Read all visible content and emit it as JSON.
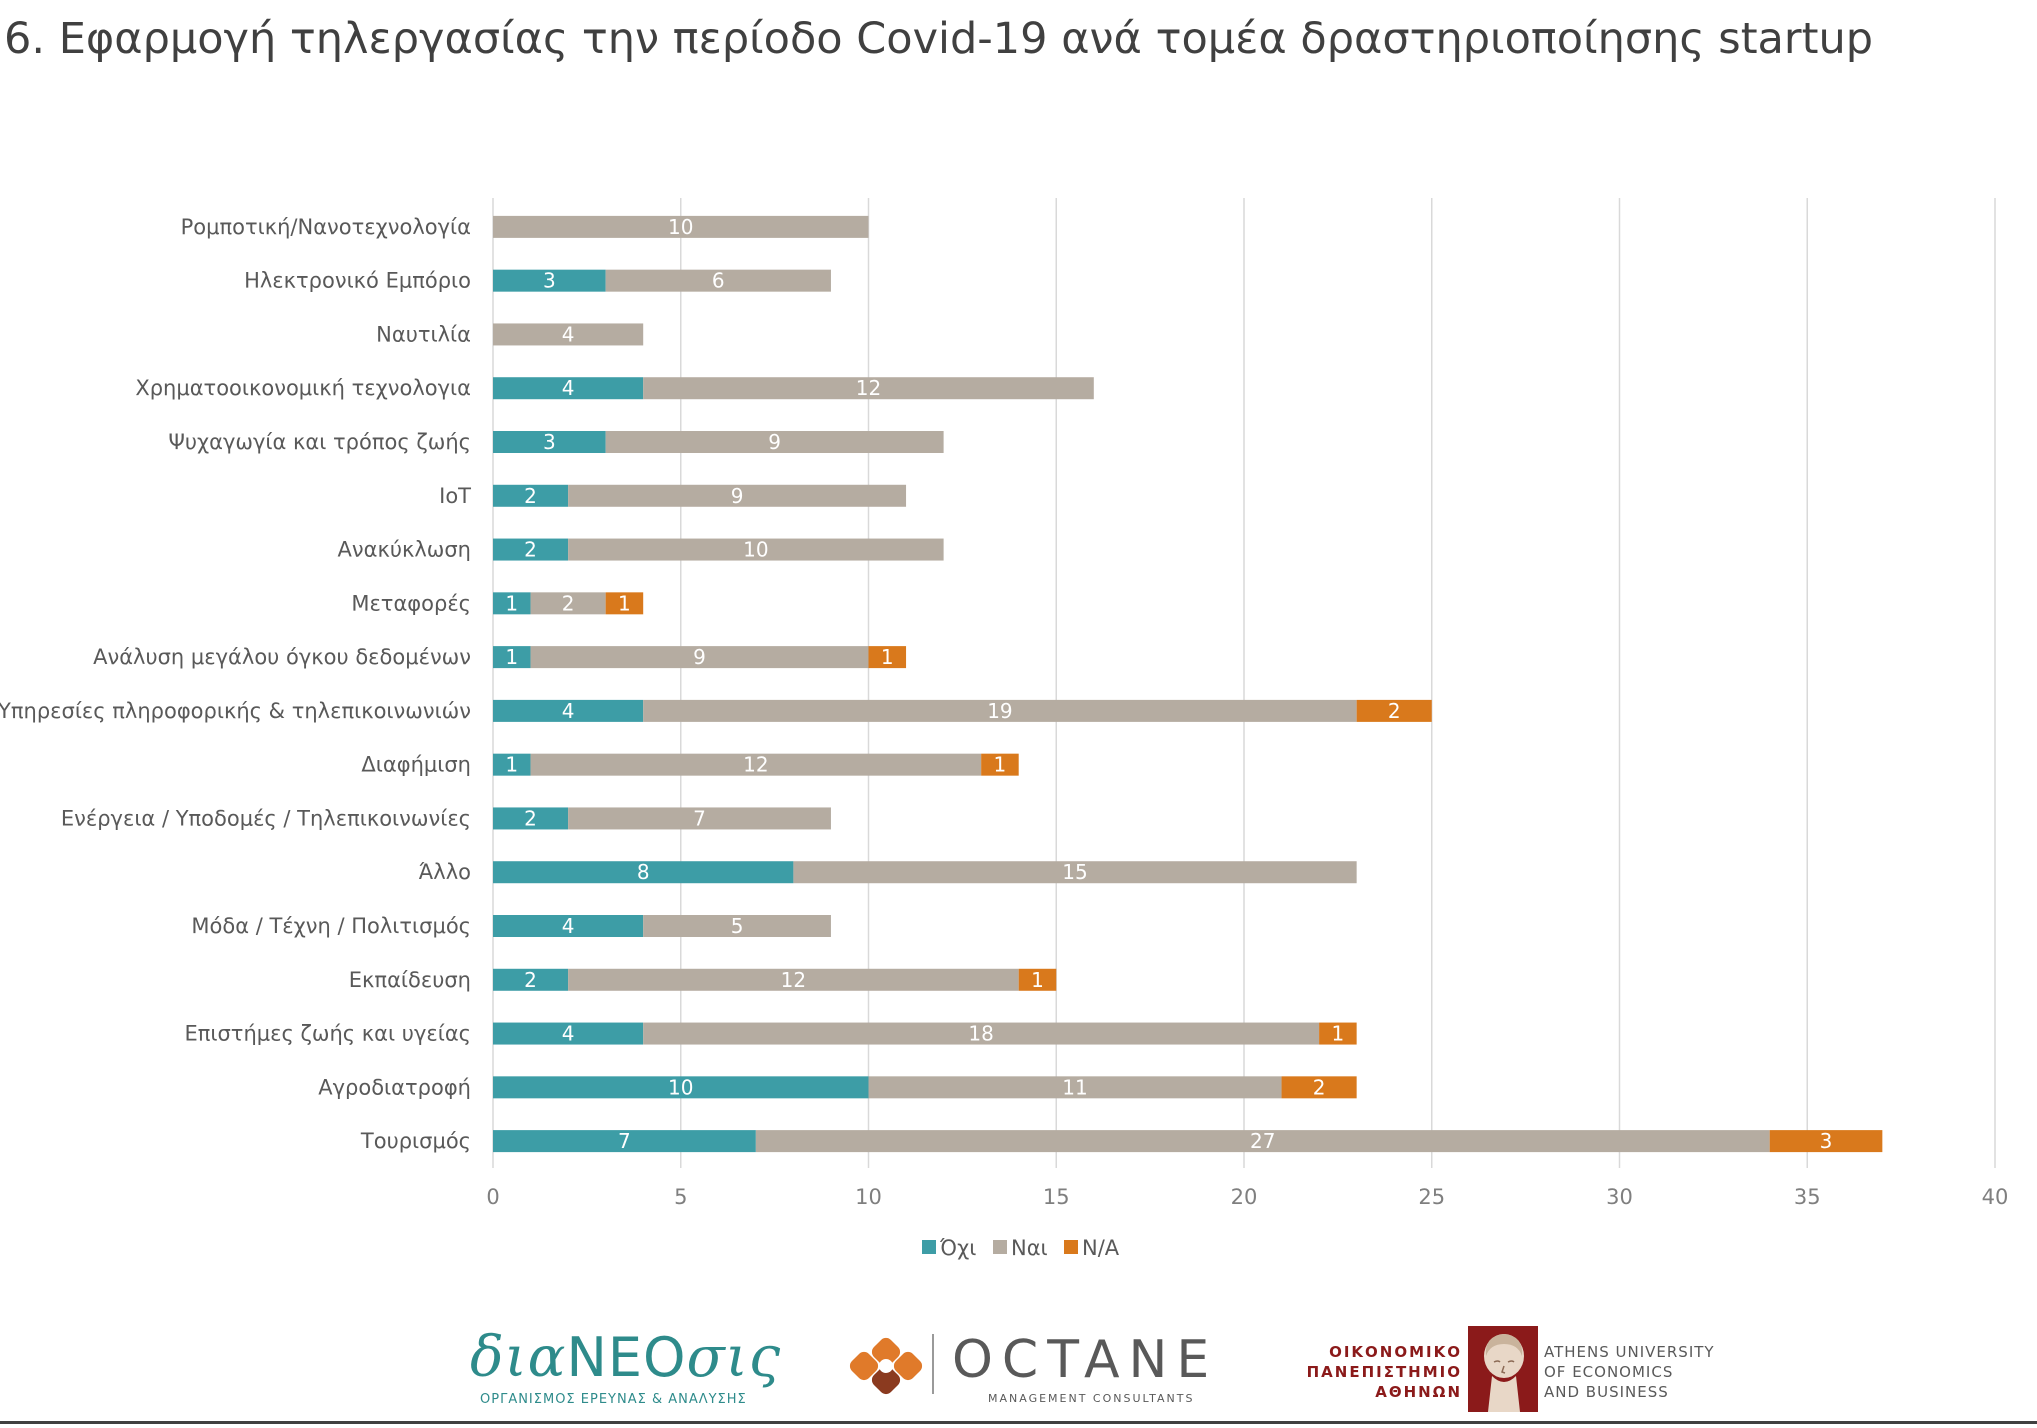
{
  "title": "6. Εφαρμογή τηλεργασίας την περίοδο Covid-19 ανά τομέα δραστηριοποίησης startup",
  "chart_data": {
    "type": "bar",
    "orientation": "horizontal",
    "stacked": true,
    "categories": [
      "Ρομποτική/Νανοτεχνολογία",
      "Ηλεκτρονικό Εμπόριο",
      "Ναυτιλία",
      "Χρηματοοικονομική τεχνολογια",
      "Ψυχαγωγία και τρόπος ζωής",
      "IoT",
      "Ανακύκλωση",
      "Μεταφορές",
      "Ανάλυση μεγάλου όγκου δεδομένων",
      "Υπηρεσίες πληροφορικής & τηλεπικοινωνιών",
      "Διαφήμιση",
      "Ενέργεια / Υποδομές / Τηλεπικοινωνίες",
      "Άλλο",
      "Μόδα / Τέχνη / Πολιτισμός",
      "Εκπαίδευση",
      "Επιστήμες ζωής και υγείας",
      "Αγροδιατροφή",
      "Τουρισμός"
    ],
    "series": [
      {
        "name": "Όχι",
        "color": "#3d9da6",
        "values": [
          0,
          3,
          0,
          4,
          3,
          2,
          2,
          1,
          1,
          4,
          1,
          2,
          8,
          4,
          2,
          4,
          10,
          7
        ]
      },
      {
        "name": "Ναι",
        "color": "#b5aca1",
        "values": [
          10,
          6,
          4,
          12,
          9,
          9,
          10,
          2,
          9,
          19,
          12,
          7,
          15,
          5,
          12,
          18,
          11,
          27
        ]
      },
      {
        "name": "N/A",
        "color": "#d9791c",
        "values": [
          0,
          0,
          0,
          0,
          0,
          0,
          0,
          1,
          1,
          2,
          1,
          0,
          0,
          0,
          1,
          1,
          2,
          3
        ]
      }
    ],
    "xticks": [
      "0",
      "5",
      "10",
      "15",
      "20",
      "25",
      "30",
      "35",
      "40"
    ],
    "xlim": [
      0,
      40
    ],
    "grid": "vertical",
    "legend": "bottom-center"
  },
  "logos": {
    "dianeosis": {
      "word_lower_1": "δια",
      "word_caps": "NEO",
      "word_lower_2": "σις",
      "subtitle": "ΟΡΓΑΝΙΣΜΟΣ ΕΡΕΥΝΑΣ & ΑΝΑΛΥΣΗΣ"
    },
    "octane": {
      "name": "OCTANE",
      "subtitle": "MANAGEMENT CONSULTANTS"
    },
    "aueb": {
      "greek_1": "ΟΙΚΟΝΟΜΙΚΟ",
      "greek_2": "ΠΑΝΕΠΙΣΤΗΜΙΟ",
      "greek_3": "ΑΘΗΝΩΝ",
      "english_1": "ATHENS UNIVERSITY",
      "english_2": "OF ECONOMICS",
      "english_3": "AND BUSINESS"
    }
  }
}
